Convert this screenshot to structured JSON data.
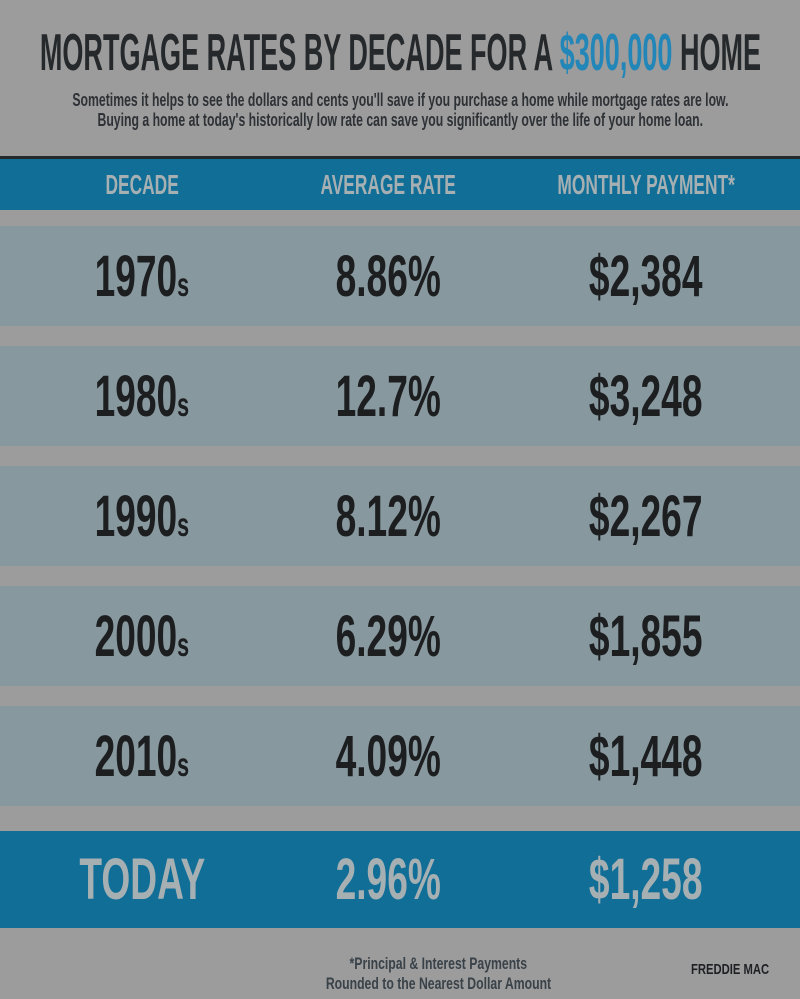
{
  "page": {
    "background_color": "#9c9c9c",
    "band_blue": "#116e97",
    "row_gray_blue": "#87989e",
    "accent_blue": "#2287b8"
  },
  "header": {
    "title_prefix": "MORTGAGE RATES BY DECADE FOR A ",
    "title_accent": "$300,000",
    "title_suffix": " HOME",
    "subtitle_line1": "Sometimes it helps to see the dollars and cents you'll save if you purchase a home while mortgage rates are low.",
    "subtitle_line2": "Buying a home at today's historically low rate can save you significantly over the life of your home loan."
  },
  "table": {
    "columns": [
      "DECADE",
      "AVERAGE RATE",
      "MONTHLY PAYMENT*"
    ],
    "rows": [
      {
        "decade": "1970",
        "suffix": "s",
        "rate": "8.86%",
        "payment": "$2,384"
      },
      {
        "decade": "1980",
        "suffix": "s",
        "rate": "12.7%",
        "payment": "$3,248"
      },
      {
        "decade": "1990",
        "suffix": "s",
        "rate": "8.12%",
        "payment": "$2,267"
      },
      {
        "decade": "2000",
        "suffix": "s",
        "rate": "6.29%",
        "payment": "$1,855"
      },
      {
        "decade": "2010",
        "suffix": "s",
        "rate": "4.09%",
        "payment": "$1,448"
      },
      {
        "decade": "TODAY",
        "suffix": "",
        "rate": "2.96%",
        "payment": "$1,258"
      }
    ]
  },
  "footer": {
    "note_line1": "*Principal & Interest Payments",
    "note_line2": "Rounded to the Nearest Dollar Amount",
    "source": "FREDDIE MAC"
  },
  "chart_data": {
    "type": "table",
    "title": "MORTGAGE RATES BY DECADE FOR A $300,000 HOME",
    "columns": [
      "DECADE",
      "AVERAGE RATE",
      "MONTHLY PAYMENT*"
    ],
    "categories": [
      "1970s",
      "1980s",
      "1990s",
      "2000s",
      "2010s",
      "TODAY"
    ],
    "series": [
      {
        "name": "AVERAGE RATE (%)",
        "values": [
          8.86,
          12.7,
          8.12,
          6.29,
          4.09,
          2.96
        ]
      },
      {
        "name": "MONTHLY PAYMENT ($)",
        "values": [
          2384,
          3248,
          2267,
          1855,
          1448,
          1258
        ]
      }
    ],
    "highlighted_row": "TODAY",
    "footnote": "*Principal & Interest Payments Rounded to the Nearest Dollar Amount",
    "source": "FREDDIE MAC"
  }
}
